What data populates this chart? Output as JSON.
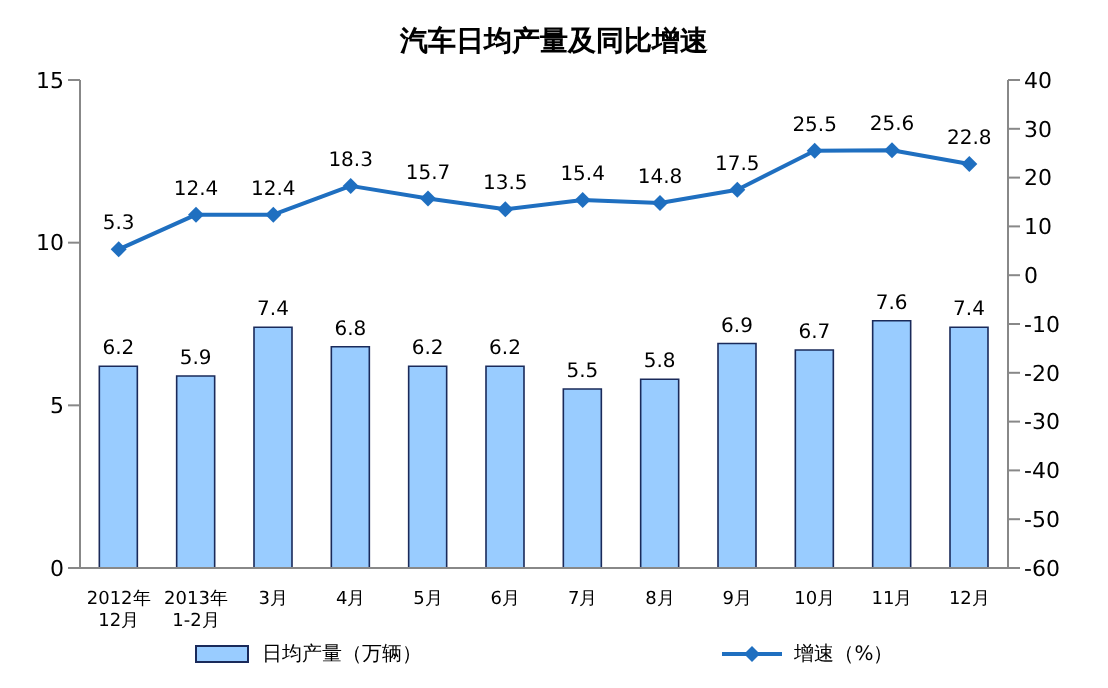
{
  "chart_data": {
    "type": "bar",
    "title": "汽车日均产量及同比增速",
    "categories": [
      "2012年\n12月",
      "2013年\n1-2月",
      "3月",
      "4月",
      "5月",
      "6月",
      "7月",
      "8月",
      "9月",
      "10月",
      "11月",
      "12月"
    ],
    "series": [
      {
        "name": "日均产量（万辆）",
        "color": "#99ccff",
        "values": [
          6.2,
          5.9,
          7.4,
          6.8,
          6.2,
          6.2,
          5.5,
          5.8,
          6.9,
          6.7,
          7.6,
          7.4
        ]
      },
      {
        "name": "增速（%）",
        "type": "line",
        "axis": "y2",
        "color": "#1f6fc0",
        "values": [
          5.3,
          12.4,
          12.4,
          18.3,
          15.7,
          13.5,
          15.4,
          14.8,
          17.5,
          25.5,
          25.6,
          22.8
        ]
      }
    ],
    "ylim": [
      0,
      15
    ],
    "yticks": [
      0,
      5,
      10,
      15
    ],
    "y2lim": [
      -60,
      40
    ],
    "y2ticks": [
      -60,
      -50,
      -40,
      -30,
      -20,
      -10,
      0,
      10,
      20,
      30,
      40
    ],
    "data_labels": true,
    "legend": "bottom",
    "marker": "diamond",
    "grid": false
  }
}
